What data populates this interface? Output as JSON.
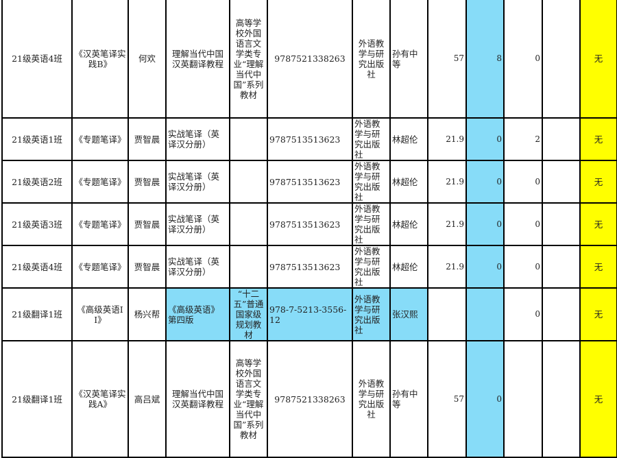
{
  "colors": {
    "highlight_blue": "#87dcf8",
    "highlight_yellow": "#ffff00"
  },
  "rows": [
    {
      "class": "21级英语4班",
      "course": "《汉英笔译实践B》",
      "teacher": "何欢",
      "textbook": "理解当代中国汉英翻译教程",
      "series": "高等学校外国语言文学类专业“理解当代中国”系列教材",
      "isbn": "9787521338263",
      "publisher": "外语教学与研究出版社",
      "editor": "孙有中等",
      "price": "57",
      "c1": "8",
      "c2": "0",
      "c3": "",
      "note": "无"
    },
    {
      "class": "21级英语1班",
      "course": "《专题笔译》",
      "teacher": "贾智晨",
      "textbook": "实战笔译（英译汉分册）",
      "series": "",
      "isbn": "9787513513623",
      "publisher": "外语教学与研究出版社",
      "editor": "林超伦",
      "price": "21.9",
      "c1": "0",
      "c2": "2",
      "c3": "",
      "note": "无"
    },
    {
      "class": "21级英语2班",
      "course": "《专题笔译》",
      "teacher": "贾智晨",
      "textbook": "实战笔译（英译汉分册）",
      "series": "",
      "isbn": "9787513513623",
      "publisher": "外语教学与研究出版社",
      "editor": "林超伦",
      "price": "21.9",
      "c1": "0",
      "c2": "0",
      "c3": "",
      "note": "无"
    },
    {
      "class": "21级英语3班",
      "course": "《专题笔译》",
      "teacher": "贾智晨",
      "textbook": "实战笔译（英译汉分册）",
      "series": "",
      "isbn": "9787513513623",
      "publisher": "外语教学与研究出版社",
      "editor": "林超伦",
      "price": "21.9",
      "c1": "0",
      "c2": "0",
      "c3": "",
      "note": "无"
    },
    {
      "class": "21级英语4班",
      "course": "《专题笔译》",
      "teacher": "贾智晨",
      "textbook": "实战笔译（英译汉分册）",
      "series": "",
      "isbn": "9787513513623",
      "publisher": "外语教学与研究出版社",
      "editor": "林超伦",
      "price": "21.9",
      "c1": "0",
      "c2": "0",
      "c3": "",
      "note": "无"
    },
    {
      "class": "21级翻译1班",
      "course": "《高级英语II》",
      "teacher": "杨兴帮",
      "textbook": "《高级英语》第四版",
      "series": "“十二五”普通国家级规划教材",
      "isbn": "978-7-5213-3556-12",
      "publisher": "外语教学与研究出版社",
      "editor": "张汉熙",
      "price": "",
      "c1": "",
      "c2": "0",
      "c3": "",
      "note": "无"
    },
    {
      "class": "21级翻译1班",
      "course": "《汉英笔译实践A》",
      "teacher": "高吕斌",
      "textbook": "理解当代中国汉英翻译教程",
      "series": "高等学校外国语言文学类专业“理解当代中国”系列教材",
      "isbn": "9787521338263",
      "publisher": "外语教学与研究出版社",
      "editor": "孙有中等",
      "price": "57",
      "c1": "0",
      "c2": "",
      "c3": "",
      "note": "无"
    }
  ]
}
